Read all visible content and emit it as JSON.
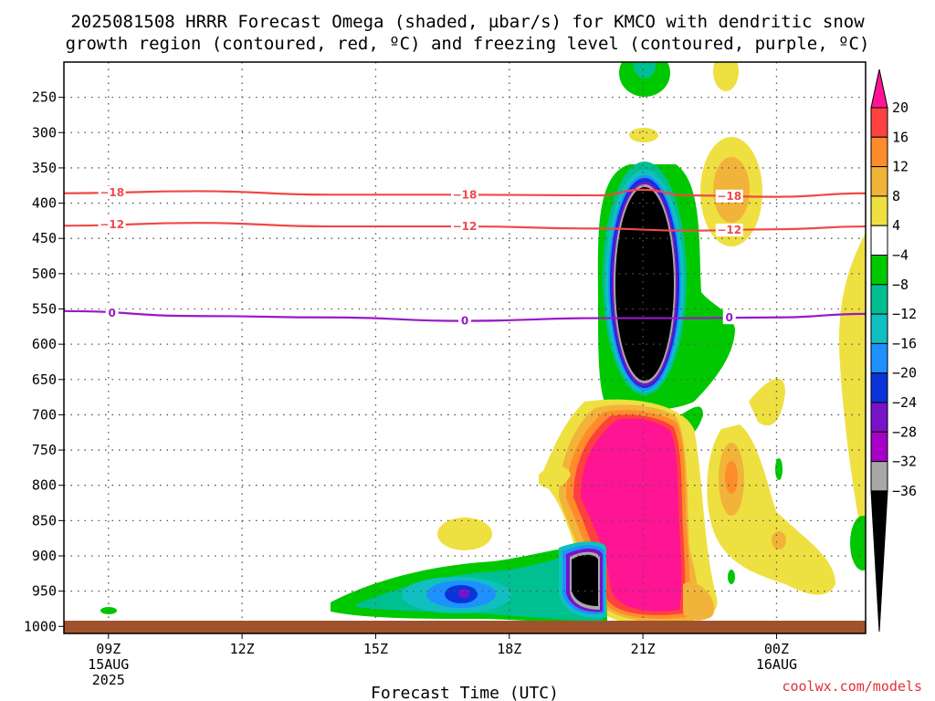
{
  "title_lines": [
    "2025081508 HRRR Forecast Omega (shaded, µbar/s) for KMCO with dendritic snow",
    "growth region (contoured, red, ºC) and freezing level (contoured, purple, ºC)"
  ],
  "credit": "coolwx.com/models",
  "chart_data": {
    "type": "time-height cross-section",
    "title": "2025081508 HRRR Forecast Omega (shaded, µbar/s) for KMCO with dendritic snow growth region (contoured, red, ºC) and freezing level (contoured, purple, ºC)",
    "xlabel": "Forecast Time (UTC)",
    "ylabel": "",
    "x_range": [
      "2025-08-15 08Z",
      "2025-08-16 02Z"
    ],
    "y_range": [
      1010,
      200
    ],
    "grid": true,
    "x_ticks": [
      {
        "time": "2025-08-15 09Z",
        "lines": [
          "09Z",
          "15AUG",
          "2025"
        ]
      },
      {
        "time": "2025-08-15 12Z",
        "lines": [
          "12Z"
        ]
      },
      {
        "time": "2025-08-15 15Z",
        "lines": [
          "15Z"
        ]
      },
      {
        "time": "2025-08-15 18Z",
        "lines": [
          "18Z"
        ]
      },
      {
        "time": "2025-08-15 21Z",
        "lines": [
          "21Z"
        ]
      },
      {
        "time": "2025-08-16 00Z",
        "lines": [
          "00Z",
          "16AUG"
        ]
      }
    ],
    "y_ticks": [
      250,
      300,
      350,
      400,
      450,
      500,
      550,
      600,
      650,
      700,
      750,
      800,
      850,
      900,
      950,
      1000
    ],
    "colorbar": {
      "labels": [
        "20",
        "16",
        "12",
        "8",
        "4",
        "−4",
        "−8",
        "−12",
        "−16",
        "−20",
        "−24",
        "−28",
        "−32",
        "−36"
      ],
      "colors": [
        "#ff1493",
        "#ff4040",
        "#ff8c2a",
        "#f2b33a",
        "#eee040",
        "#ffffff",
        "#00c800",
        "#00bf90",
        "#10c0c0",
        "#1e90ff",
        "#0a33d9",
        "#7a12c8",
        "#a600c8",
        "#a8a8a8",
        "#000000"
      ]
    },
    "contours": [
      {
        "label": "−18",
        "color": "#f04848",
        "points": [
          [
            "2025-08-15 08Z",
            386
          ],
          [
            "2025-08-15 11Z",
            383
          ],
          [
            "2025-08-15 14Z",
            388
          ],
          [
            "2025-08-15 17Z",
            388
          ],
          [
            "2025-08-15 20Z",
            389
          ],
          [
            "2025-08-15 21Z",
            381
          ],
          [
            "2025-08-15 22Z",
            389
          ],
          [
            "2025-08-16 00Z",
            391
          ],
          [
            "2025-08-16 02Z",
            386
          ]
        ]
      },
      {
        "label": "−12",
        "color": "#f04848",
        "points": [
          [
            "2025-08-15 08Z",
            432
          ],
          [
            "2025-08-15 11Z",
            428
          ],
          [
            "2025-08-15 14Z",
            433
          ],
          [
            "2025-08-15 17Z",
            433
          ],
          [
            "2025-08-15 20Z",
            436
          ],
          [
            "2025-08-15 22Z",
            439
          ],
          [
            "2025-08-16 00Z",
            437
          ],
          [
            "2025-08-16 02Z",
            433
          ]
        ]
      },
      {
        "label": "0",
        "color": "#9a18c8",
        "points": [
          [
            "2025-08-15 08Z",
            553
          ],
          [
            "2025-08-15 11Z",
            560
          ],
          [
            "2025-08-15 14Z",
            562
          ],
          [
            "2025-08-15 17Z",
            567
          ],
          [
            "2025-08-15 20Z",
            563
          ],
          [
            "2025-08-15 22Z",
            563
          ],
          [
            "2025-08-16 00Z",
            562
          ],
          [
            "2025-08-16 02Z",
            557
          ]
        ]
      }
    ]
  }
}
